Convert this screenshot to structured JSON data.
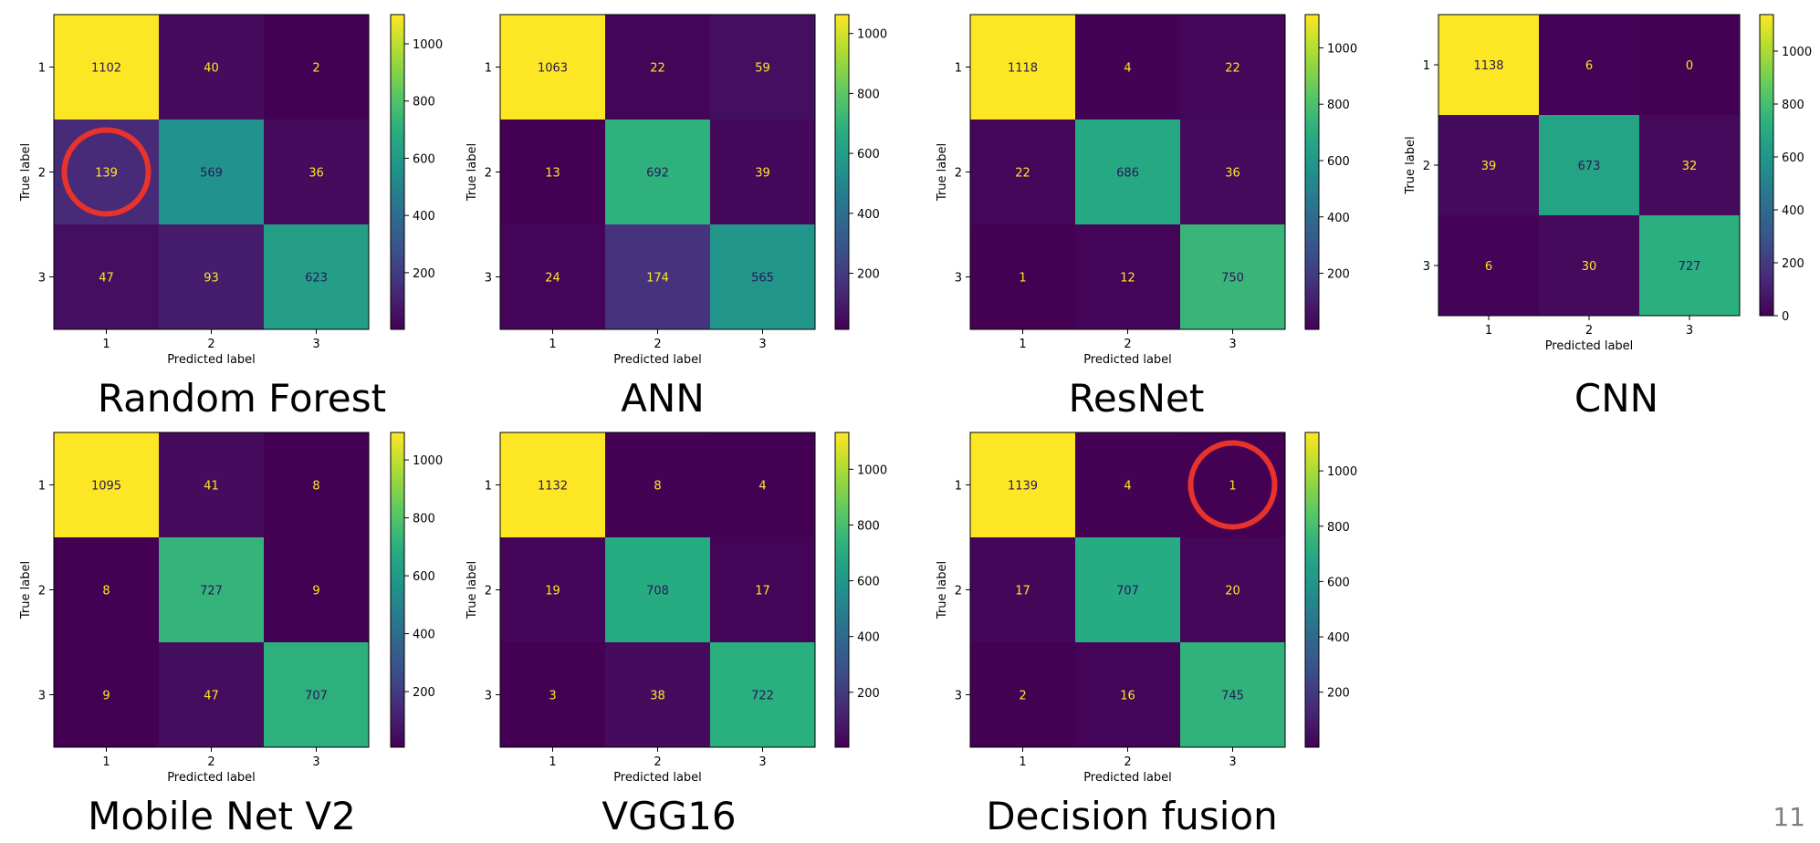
{
  "slide": {
    "page_number": "11"
  },
  "colors": {
    "highlight_circle": "#e8322c",
    "colormap": "viridis",
    "text_on_dark": "#fde725",
    "text_on_light": "#2a1858"
  },
  "chart_data": [
    {
      "type": "heatmap",
      "title": "Random Forest",
      "xlabel": "Predicted label",
      "ylabel": "True label",
      "x_ticks": [
        "1",
        "2",
        "3"
      ],
      "y_ticks": [
        "1",
        "2",
        "3"
      ],
      "matrix": [
        [
          1102,
          40,
          2
        ],
        [
          139,
          569,
          36
        ],
        [
          47,
          93,
          623
        ]
      ],
      "colorbar_ticks": [
        200,
        400,
        600,
        800,
        1000
      ],
      "highlight": {
        "row": 1,
        "col": 0
      }
    },
    {
      "type": "heatmap",
      "title": "ANN",
      "xlabel": "Predicted label",
      "ylabel": "True label",
      "x_ticks": [
        "1",
        "2",
        "3"
      ],
      "y_ticks": [
        "1",
        "2",
        "3"
      ],
      "matrix": [
        [
          1063,
          22,
          59
        ],
        [
          13,
          692,
          39
        ],
        [
          24,
          174,
          565
        ]
      ],
      "colorbar_ticks": [
        200,
        400,
        600,
        800,
        1000
      ]
    },
    {
      "type": "heatmap",
      "title": "ResNet",
      "xlabel": "Predicted label",
      "ylabel": "True label",
      "x_ticks": [
        "1",
        "2",
        "3"
      ],
      "y_ticks": [
        "1",
        "2",
        "3"
      ],
      "matrix": [
        [
          1118,
          4,
          22
        ],
        [
          22,
          686,
          36
        ],
        [
          1,
          12,
          750
        ]
      ],
      "colorbar_ticks": [
        200,
        400,
        600,
        800,
        1000
      ]
    },
    {
      "type": "heatmap",
      "title": "CNN",
      "xlabel": "Predicted label",
      "ylabel": "True label",
      "x_ticks": [
        "1",
        "2",
        "3"
      ],
      "y_ticks": [
        "1",
        "2",
        "3"
      ],
      "matrix": [
        [
          1138,
          6,
          0
        ],
        [
          39,
          673,
          32
        ],
        [
          6,
          30,
          727
        ]
      ],
      "colorbar_ticks": [
        0,
        200,
        400,
        600,
        800,
        1000
      ]
    },
    {
      "type": "heatmap",
      "title": "Mobile Net V2",
      "xlabel": "Predicted label",
      "ylabel": "True label",
      "x_ticks": [
        "1",
        "2",
        "3"
      ],
      "y_ticks": [
        "1",
        "2",
        "3"
      ],
      "matrix": [
        [
          1095,
          41,
          8
        ],
        [
          8,
          727,
          9
        ],
        [
          9,
          47,
          707
        ]
      ],
      "colorbar_ticks": [
        200,
        400,
        600,
        800,
        1000
      ]
    },
    {
      "type": "heatmap",
      "title": "VGG16",
      "xlabel": "Predicted label",
      "ylabel": "True label",
      "x_ticks": [
        "1",
        "2",
        "3"
      ],
      "y_ticks": [
        "1",
        "2",
        "3"
      ],
      "matrix": [
        [
          1132,
          8,
          4
        ],
        [
          19,
          708,
          17
        ],
        [
          3,
          38,
          722
        ]
      ],
      "colorbar_ticks": [
        200,
        400,
        600,
        800,
        1000
      ]
    },
    {
      "type": "heatmap",
      "title": "Decision fusion",
      "xlabel": "Predicted label",
      "ylabel": "True label",
      "x_ticks": [
        "1",
        "2",
        "3"
      ],
      "y_ticks": [
        "1",
        "2",
        "3"
      ],
      "matrix": [
        [
          1139,
          4,
          1
        ],
        [
          17,
          707,
          20
        ],
        [
          2,
          16,
          745
        ]
      ],
      "colorbar_ticks": [
        200,
        400,
        600,
        800,
        1000
      ],
      "highlight": {
        "row": 0,
        "col": 2
      }
    }
  ]
}
